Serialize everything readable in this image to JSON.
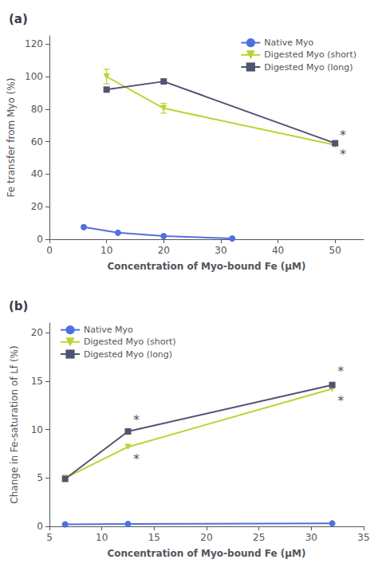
{
  "chart_data": [
    {
      "type": "line",
      "title": "(a)",
      "xlabel": "Concentration of Myo-bound Fe (μM)",
      "ylabel": "Fe transfer from Myo (%)",
      "xlim": [
        0,
        55
      ],
      "ylim": [
        0,
        125
      ],
      "xticks": [
        0,
        10,
        20,
        30,
        40,
        50
      ],
      "yticks": [
        0,
        20,
        40,
        60,
        80,
        100,
        120
      ],
      "grid": false,
      "legend": "upper right",
      "series": [
        {
          "name": "Native Myo",
          "x": [
            6,
            12,
            20,
            32
          ],
          "values": [
            7.5,
            4.0,
            2.0,
            0.5
          ],
          "marker": "circle"
        },
        {
          "name": "Digested Myo (short)",
          "x": [
            10,
            20,
            50
          ],
          "values": [
            100.0,
            80.5,
            58.0
          ],
          "yerr": [
            4.5,
            3.0,
            0
          ],
          "marker": "triangle_down"
        },
        {
          "name": "Digested Myo (long)",
          "x": [
            10,
            20,
            50
          ],
          "values": [
            92.0,
            97.0,
            59.0
          ],
          "marker": "square"
        }
      ],
      "annotations": [
        {
          "x": 50.8,
          "y": 64,
          "text": "*"
        },
        {
          "x": 50.8,
          "y": 52,
          "text": "*"
        }
      ]
    },
    {
      "type": "line",
      "title": "(b)",
      "xlabel": "Concentration of Myo-bound Fe (μM)",
      "ylabel": "Change in Fe-saturation of Lf (%)",
      "xlim": [
        5,
        35
      ],
      "ylim": [
        0,
        21
      ],
      "xticks": [
        5,
        10,
        15,
        20,
        25,
        30,
        35
      ],
      "yticks": [
        0,
        5,
        10,
        15,
        20
      ],
      "grid": false,
      "legend": "upper left",
      "series": [
        {
          "name": "Native Myo",
          "x": [
            6.5,
            12.5,
            32.0
          ],
          "values": [
            0.2,
            0.25,
            0.3
          ],
          "marker": "circle"
        },
        {
          "name": "Digested Myo (short)",
          "x": [
            6.5,
            12.5,
            32.0
          ],
          "values": [
            5.0,
            8.2,
            14.2
          ],
          "marker": "triangle_down"
        },
        {
          "name": "Digested Myo (long)",
          "x": [
            6.5,
            12.5,
            32.0
          ],
          "values": [
            4.9,
            9.8,
            14.6
          ],
          "marker": "square"
        }
      ],
      "annotations": [
        {
          "x": 13.0,
          "y": 11.0,
          "text": "*"
        },
        {
          "x": 13.0,
          "y": 7.0,
          "text": "*"
        },
        {
          "x": 32.5,
          "y": 16.0,
          "text": "*"
        },
        {
          "x": 32.5,
          "y": 13.0,
          "text": "*"
        }
      ]
    }
  ]
}
